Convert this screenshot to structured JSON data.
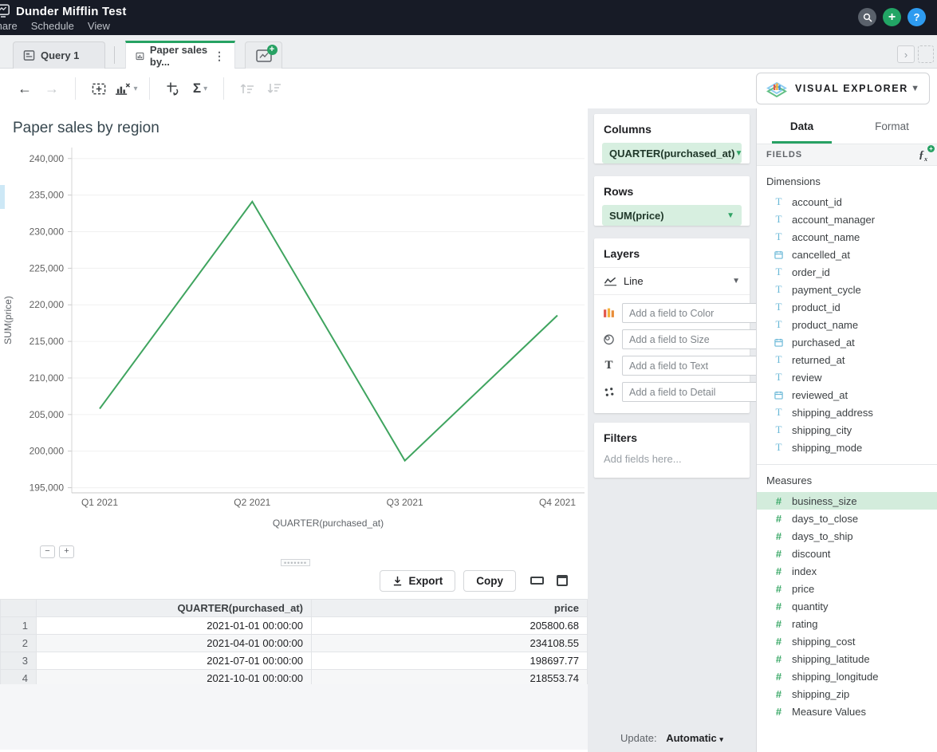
{
  "topbar": {
    "title": "Dunder Mifflin Test",
    "menu": [
      "Share",
      "Schedule",
      "View"
    ]
  },
  "tabs": {
    "query_tab": "Query 1",
    "chart_tab": "Paper sales by..."
  },
  "toolbar": {
    "icons": [
      "back-arrow",
      "forward-arrow",
      "add-frame",
      "remove-chart",
      "swap-axes",
      "aggregate-sigma",
      "sort-ascending",
      "sort-descending"
    ]
  },
  "explorer": {
    "title": "VISUAL EXPLORER",
    "tabs": [
      "Data",
      "Format"
    ],
    "active_tab": "Data",
    "fields_label": "FIELDS",
    "dimensions": {
      "label": "Dimensions",
      "items": [
        {
          "name": "account_id",
          "type": "text"
        },
        {
          "name": "account_manager",
          "type": "text"
        },
        {
          "name": "account_name",
          "type": "text"
        },
        {
          "name": "cancelled_at",
          "type": "date"
        },
        {
          "name": "order_id",
          "type": "text"
        },
        {
          "name": "payment_cycle",
          "type": "text"
        },
        {
          "name": "product_id",
          "type": "text"
        },
        {
          "name": "product_name",
          "type": "text"
        },
        {
          "name": "purchased_at",
          "type": "date"
        },
        {
          "name": "returned_at",
          "type": "text"
        },
        {
          "name": "review",
          "type": "text"
        },
        {
          "name": "reviewed_at",
          "type": "date"
        },
        {
          "name": "shipping_address",
          "type": "text"
        },
        {
          "name": "shipping_city",
          "type": "text"
        },
        {
          "name": "shipping_mode",
          "type": "text"
        }
      ]
    },
    "measures": {
      "label": "Measures",
      "items": [
        {
          "name": "business_size",
          "type": "measure",
          "selected": true
        },
        {
          "name": "days_to_close",
          "type": "measure"
        },
        {
          "name": "days_to_ship",
          "type": "measure"
        },
        {
          "name": "discount",
          "type": "measure"
        },
        {
          "name": "index",
          "type": "measure"
        },
        {
          "name": "price",
          "type": "measure"
        },
        {
          "name": "quantity",
          "type": "measure"
        },
        {
          "name": "rating",
          "type": "measure"
        },
        {
          "name": "shipping_cost",
          "type": "measure"
        },
        {
          "name": "shipping_latitude",
          "type": "measure"
        },
        {
          "name": "shipping_longitude",
          "type": "measure"
        },
        {
          "name": "shipping_zip",
          "type": "measure"
        },
        {
          "name": "Measure Values",
          "type": "measure"
        }
      ]
    }
  },
  "shelf": {
    "columns": {
      "label": "Columns",
      "pill": "QUARTER(purchased_at)"
    },
    "rows": {
      "label": "Rows",
      "pill": "SUM(price)"
    },
    "layers": {
      "label": "Layers",
      "type_label": "Line",
      "dropzones": [
        {
          "icon": "color",
          "placeholder": "Add a field to Color"
        },
        {
          "icon": "size",
          "placeholder": "Add a field to Size"
        },
        {
          "icon": "text",
          "placeholder": "Add a field to Text"
        },
        {
          "icon": "detail",
          "placeholder": "Add a field to Detail"
        }
      ]
    },
    "filters": {
      "label": "Filters",
      "placeholder": "Add fields here..."
    }
  },
  "chart_data": {
    "type": "line",
    "title": "Paper sales by region",
    "x": [
      "Q1 2021",
      "Q2 2021",
      "Q3 2021",
      "Q4 2021"
    ],
    "values": [
      205800.68,
      234108.55,
      198697.77,
      218553.74
    ],
    "xlabel": "QUARTER(purchased_at)",
    "ylabel": "SUM(price)",
    "yticks": [
      195000,
      200000,
      205000,
      210000,
      215000,
      220000,
      225000,
      230000,
      235000,
      240000
    ],
    "ylim": [
      194300,
      241500
    ],
    "line_color": "#3fa45f",
    "grid": true,
    "legend": false
  },
  "table": {
    "export_label": "Export",
    "copy_label": "Copy",
    "columns": [
      "QUARTER(purchased_at)",
      "price"
    ],
    "rows": [
      [
        "1",
        "2021-01-01 00:00:00",
        "205800.68"
      ],
      [
        "2",
        "2021-04-01 00:00:00",
        "234108.55"
      ],
      [
        "3",
        "2021-07-01 00:00:00",
        "198697.77"
      ],
      [
        "4",
        "2021-10-01 00:00:00",
        "218553.74"
      ]
    ]
  },
  "update": {
    "label": "Update:",
    "value": "Automatic"
  }
}
